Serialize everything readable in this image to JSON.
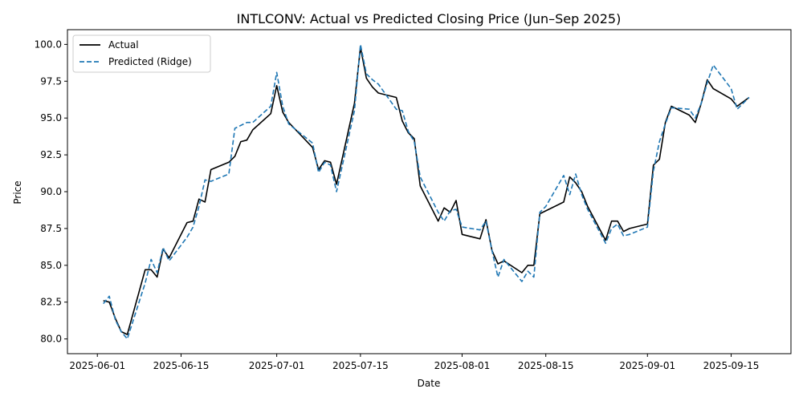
{
  "chart_data": {
    "type": "line",
    "title": "INTLCONV: Actual vs Predicted Closing Price (Jun–Sep 2025)",
    "xlabel": "Date",
    "ylabel": "Price",
    "xlim": [
      "2025-05-27",
      "2025-09-25"
    ],
    "ylim": [
      79.0,
      101.0
    ],
    "grid": false,
    "legend_position": "top-left",
    "x_ticks": [
      "2025-06-01",
      "2025-06-15",
      "2025-07-01",
      "2025-07-15",
      "2025-08-01",
      "2025-08-15",
      "2025-09-01",
      "2025-09-15"
    ],
    "y_ticks": [
      "80.0",
      "82.5",
      "85.0",
      "87.5",
      "90.0",
      "92.5",
      "95.0",
      "97.5",
      "100.0"
    ],
    "series": [
      {
        "name": "Actual",
        "color": "#000000",
        "style": "solid",
        "x": [
          "2025-06-02",
          "2025-06-03",
          "2025-06-04",
          "2025-06-05",
          "2025-06-06",
          "2025-06-09",
          "2025-06-10",
          "2025-06-11",
          "2025-06-12",
          "2025-06-13",
          "2025-06-16",
          "2025-06-17",
          "2025-06-18",
          "2025-06-19",
          "2025-06-20",
          "2025-06-23",
          "2025-06-24",
          "2025-06-25",
          "2025-06-26",
          "2025-06-27",
          "2025-06-30",
          "2025-07-01",
          "2025-07-02",
          "2025-07-03",
          "2025-07-07",
          "2025-07-08",
          "2025-07-09",
          "2025-07-10",
          "2025-07-11",
          "2025-07-14",
          "2025-07-15",
          "2025-07-16",
          "2025-07-17",
          "2025-07-18",
          "2025-07-21",
          "2025-07-22",
          "2025-07-23",
          "2025-07-24",
          "2025-07-25",
          "2025-07-28",
          "2025-07-29",
          "2025-07-30",
          "2025-07-31",
          "2025-08-01",
          "2025-08-04",
          "2025-08-05",
          "2025-08-06",
          "2025-08-07",
          "2025-08-08",
          "2025-08-11",
          "2025-08-12",
          "2025-08-13",
          "2025-08-14",
          "2025-08-15",
          "2025-08-18",
          "2025-08-19",
          "2025-08-20",
          "2025-08-21",
          "2025-08-22",
          "2025-08-25",
          "2025-08-26",
          "2025-08-27",
          "2025-08-28",
          "2025-08-29",
          "2025-09-01",
          "2025-09-02",
          "2025-09-03",
          "2025-09-04",
          "2025-09-05",
          "2025-09-08",
          "2025-09-09",
          "2025-09-10",
          "2025-09-11",
          "2025-09-12",
          "2025-09-15",
          "2025-09-16",
          "2025-09-17",
          "2025-09-18"
        ],
        "values": [
          82.6,
          82.5,
          81.4,
          80.5,
          80.3,
          84.7,
          84.7,
          84.2,
          86.1,
          85.5,
          87.9,
          88.0,
          89.5,
          89.3,
          91.5,
          92.0,
          92.4,
          93.4,
          93.5,
          94.2,
          95.3,
          97.2,
          95.4,
          94.7,
          93.0,
          91.5,
          92.1,
          92.0,
          90.5,
          96.0,
          99.8,
          97.7,
          97.1,
          96.7,
          96.4,
          94.8,
          94.0,
          93.6,
          90.4,
          88.0,
          88.9,
          88.6,
          89.4,
          87.1,
          86.8,
          88.1,
          86.0,
          85.1,
          85.3,
          84.5,
          85.0,
          85.0,
          88.5,
          88.7,
          89.3,
          91.0,
          90.6,
          90.0,
          89.0,
          86.7,
          88.0,
          88.0,
          87.3,
          87.5,
          87.8,
          91.8,
          92.2,
          94.7,
          95.8,
          95.2,
          94.7,
          96.0,
          97.6,
          97.0,
          96.3,
          95.8,
          96.1,
          96.4
        ]
      },
      {
        "name": "Predicted (Ridge)",
        "color": "#1f77b4",
        "style": "dashed",
        "x": [
          "2025-06-02",
          "2025-06-03",
          "2025-06-04",
          "2025-06-05",
          "2025-06-06",
          "2025-06-09",
          "2025-06-10",
          "2025-06-11",
          "2025-06-12",
          "2025-06-13",
          "2025-06-16",
          "2025-06-17",
          "2025-06-18",
          "2025-06-19",
          "2025-06-20",
          "2025-06-23",
          "2025-06-24",
          "2025-06-25",
          "2025-06-26",
          "2025-06-27",
          "2025-06-30",
          "2025-07-01",
          "2025-07-02",
          "2025-07-03",
          "2025-07-07",
          "2025-07-08",
          "2025-07-09",
          "2025-07-10",
          "2025-07-11",
          "2025-07-14",
          "2025-07-15",
          "2025-07-16",
          "2025-07-17",
          "2025-07-18",
          "2025-07-21",
          "2025-07-22",
          "2025-07-23",
          "2025-07-24",
          "2025-07-25",
          "2025-07-28",
          "2025-07-29",
          "2025-07-30",
          "2025-07-31",
          "2025-08-01",
          "2025-08-04",
          "2025-08-05",
          "2025-08-06",
          "2025-08-07",
          "2025-08-08",
          "2025-08-11",
          "2025-08-12",
          "2025-08-13",
          "2025-08-14",
          "2025-08-15",
          "2025-08-18",
          "2025-08-19",
          "2025-08-20",
          "2025-08-21",
          "2025-08-22",
          "2025-08-25",
          "2025-08-26",
          "2025-08-27",
          "2025-08-28",
          "2025-08-29",
          "2025-09-01",
          "2025-09-02",
          "2025-09-03",
          "2025-09-04",
          "2025-09-05",
          "2025-09-08",
          "2025-09-09",
          "2025-09-10",
          "2025-09-11",
          "2025-09-12",
          "2025-09-15",
          "2025-09-16",
          "2025-09-17",
          "2025-09-18"
        ],
        "values": [
          82.4,
          82.9,
          81.3,
          80.5,
          80.0,
          83.8,
          85.4,
          84.5,
          86.2,
          85.3,
          86.9,
          87.6,
          89.0,
          90.8,
          90.7,
          91.2,
          94.3,
          94.5,
          94.7,
          94.7,
          95.8,
          98.1,
          95.8,
          94.6,
          93.3,
          91.3,
          92.0,
          91.8,
          90.0,
          95.5,
          100.0,
          98.0,
          97.6,
          97.3,
          95.6,
          95.5,
          94.1,
          93.4,
          91.0,
          88.6,
          88.0,
          88.7,
          88.8,
          87.6,
          87.4,
          88.0,
          86.0,
          84.2,
          85.4,
          83.9,
          84.6,
          84.2,
          88.6,
          89.0,
          91.1,
          89.8,
          91.2,
          89.8,
          88.8,
          86.5,
          87.5,
          87.8,
          87.0,
          87.1,
          87.6,
          91.4,
          93.4,
          94.6,
          95.7,
          95.6,
          95.0,
          96.0,
          97.4,
          98.6,
          97.0,
          95.6,
          96.0,
          96.4
        ]
      }
    ]
  }
}
